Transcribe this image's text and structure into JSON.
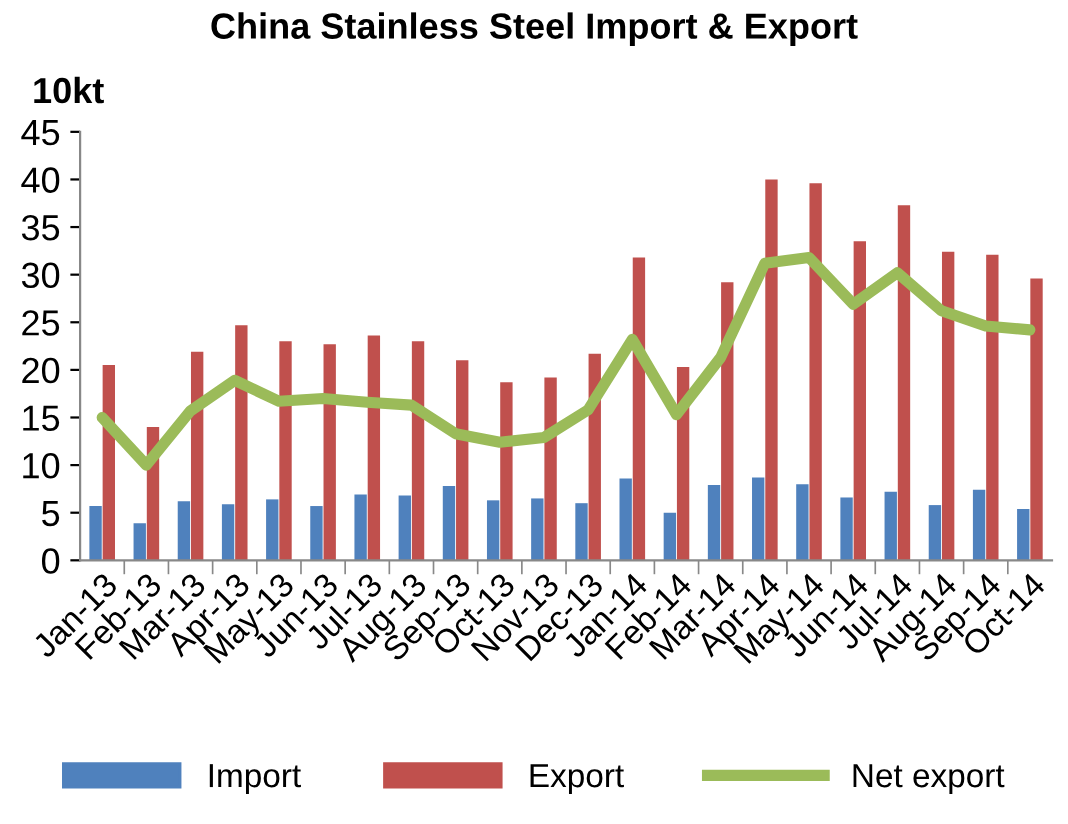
{
  "chart_data": {
    "type": "bar",
    "title": "China Stainless Steel Import & Export",
    "ylabel": "10kt",
    "categories": [
      "Jan-13",
      "Feb-13",
      "Mar-13",
      "Apr-13",
      "May-13",
      "Jun-13",
      "Jul-13",
      "Aug-13",
      "Sep-13",
      "Oct-13",
      "Nov-13",
      "Dec-13",
      "Jan-14",
      "Feb-14",
      "Mar-14",
      "Apr-14",
      "May-14",
      "Jun-14",
      "Jul-14",
      "Aug-14",
      "Sep-14",
      "Oct-14"
    ],
    "series": [
      {
        "name": "Import",
        "color": "#4f81bd",
        "values": [
          5.7,
          3.9,
          6.2,
          5.9,
          6.4,
          5.7,
          6.9,
          6.8,
          7.8,
          6.3,
          6.5,
          6.0,
          8.6,
          5.0,
          7.9,
          8.7,
          8.0,
          6.6,
          7.2,
          5.8,
          7.4,
          5.4
        ]
      },
      {
        "name": "Export",
        "color": "#c0504d",
        "values": [
          20.5,
          14.0,
          21.9,
          24.7,
          23.0,
          22.7,
          23.6,
          23.0,
          21.0,
          18.7,
          19.2,
          21.7,
          31.8,
          20.3,
          29.2,
          40.0,
          39.6,
          33.5,
          37.3,
          32.4,
          32.1,
          29.6
        ]
      },
      {
        "name": "Net export",
        "type": "line",
        "color": "#9bbb59",
        "values": [
          15.0,
          10.0,
          15.7,
          18.9,
          16.7,
          17.0,
          16.6,
          16.3,
          13.3,
          12.4,
          12.9,
          15.8,
          23.2,
          15.3,
          21.3,
          31.2,
          31.8,
          26.9,
          30.2,
          26.2,
          24.6,
          24.2
        ]
      }
    ],
    "ylim": [
      0,
      45
    ],
    "yticks": [
      0,
      5,
      10,
      15,
      20,
      25,
      30,
      35,
      40,
      45
    ],
    "legend": "bottom",
    "marker": "none",
    "line_style": "solid"
  }
}
